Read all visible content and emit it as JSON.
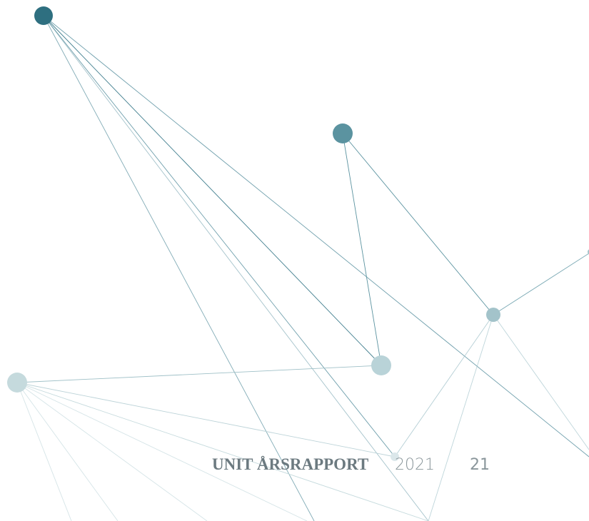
{
  "footer": {
    "title": "UNIT ÅRSRAPPORT",
    "year": "2021",
    "page": "21"
  }
}
